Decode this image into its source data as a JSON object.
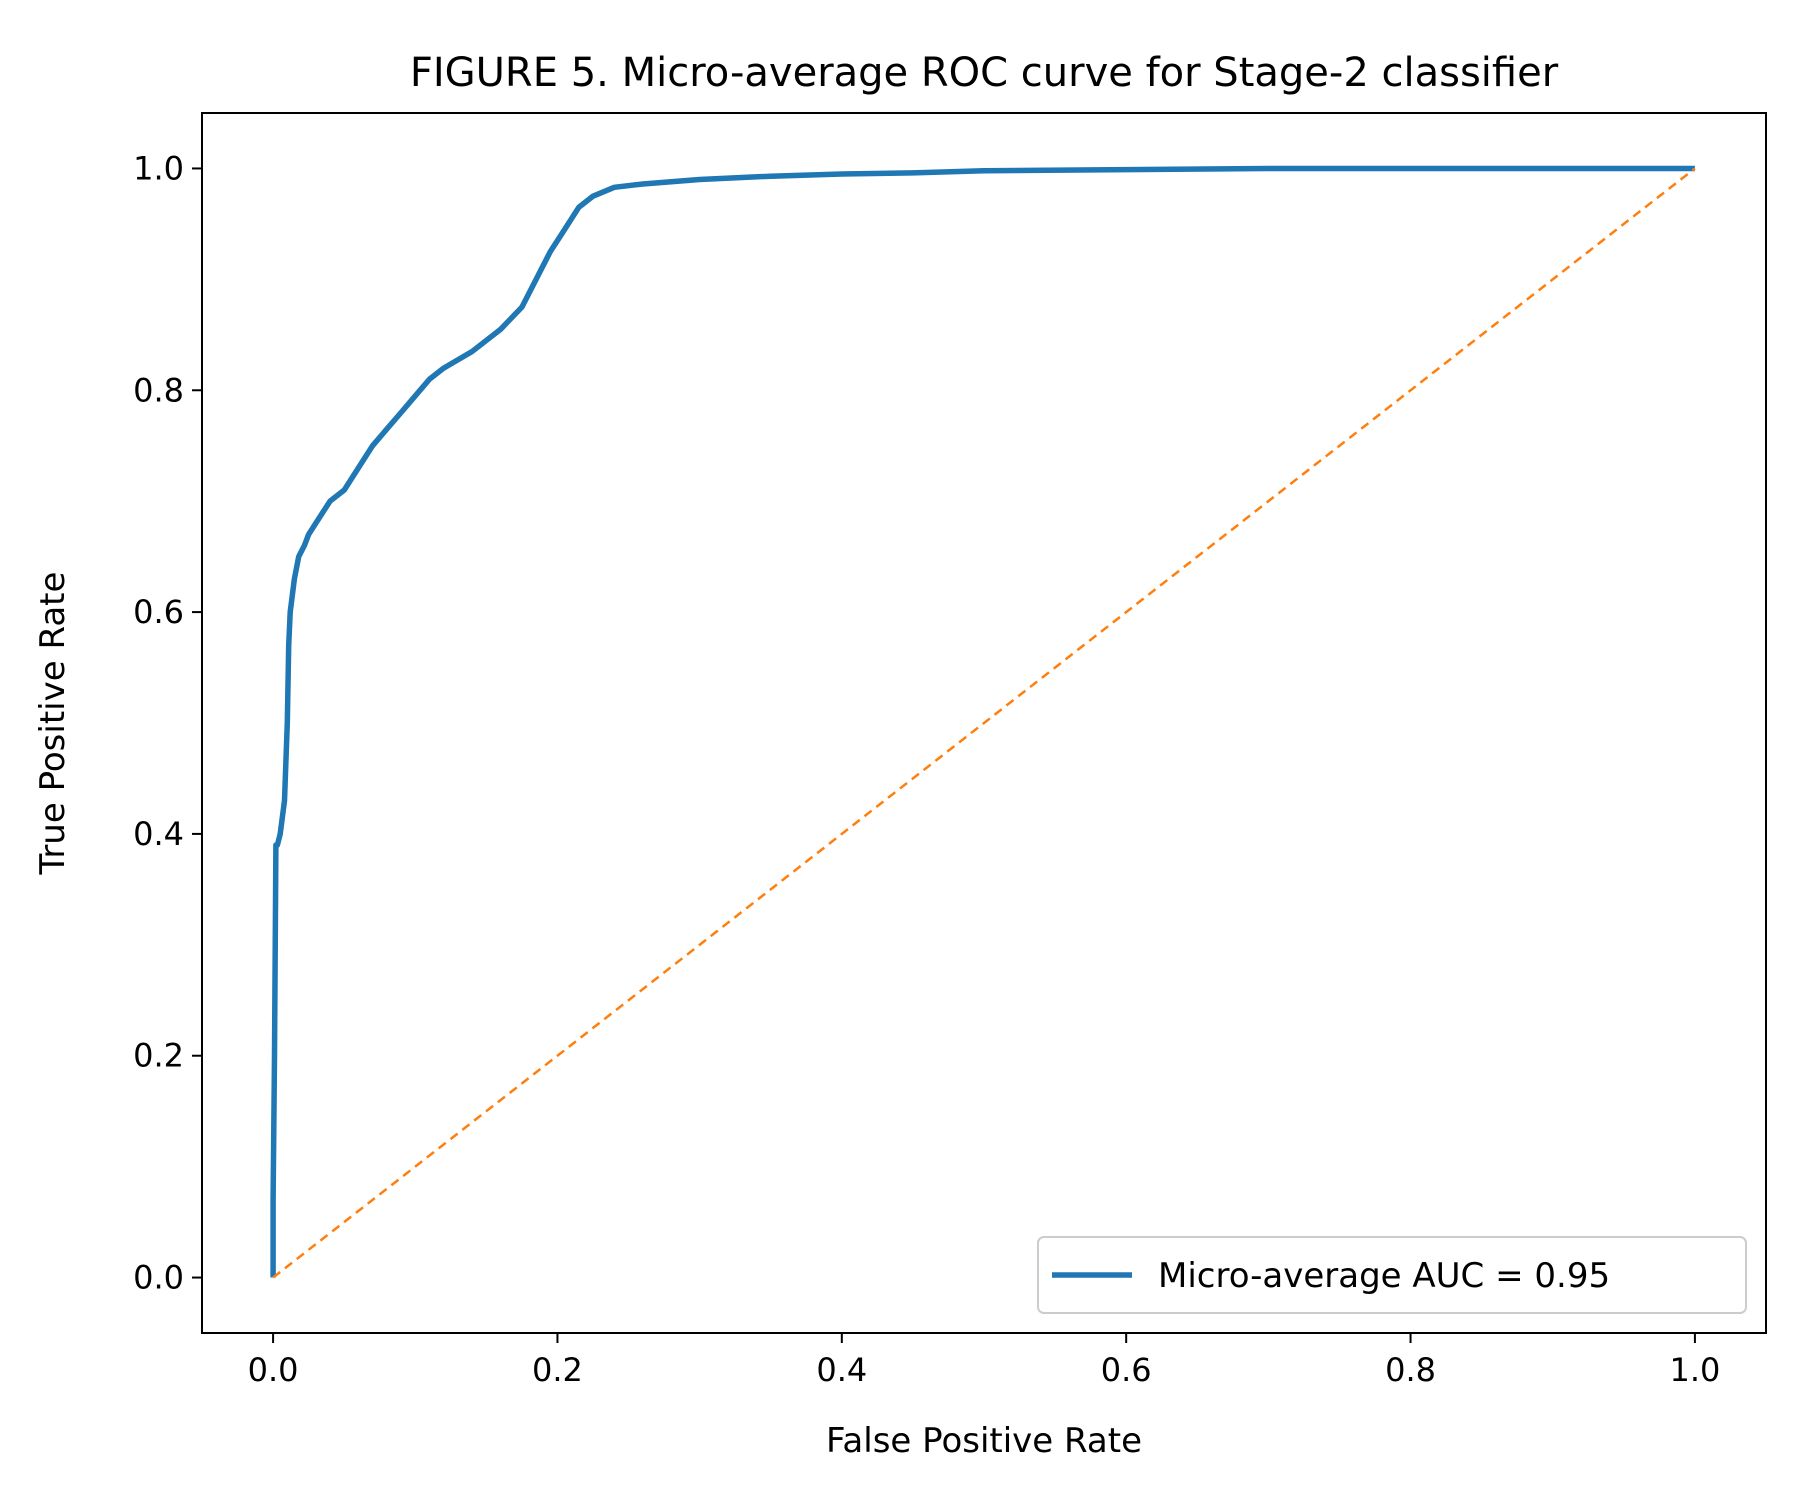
{
  "chart_data": {
    "type": "line",
    "title": "FIGURE 5. Micro-average ROC curve for Stage-2 classifier",
    "xlabel": "False Positive Rate",
    "ylabel": "True Positive Rate",
    "xlim": [
      -0.05,
      1.05
    ],
    "ylim": [
      -0.05,
      1.05
    ],
    "xticks": [
      "0.0",
      "0.2",
      "0.4",
      "0.6",
      "0.8",
      "1.0"
    ],
    "yticks": [
      "0.0",
      "0.2",
      "0.4",
      "0.6",
      "0.8",
      "1.0"
    ],
    "grid": false,
    "legend_position": "lower-right",
    "series": [
      {
        "name": "Micro-average AUC = 0.95",
        "color": "#1f77b4",
        "style": "solid",
        "x": [
          0.0,
          0.0,
          0.001,
          0.002,
          0.003,
          0.005,
          0.008,
          0.01,
          0.011,
          0.012,
          0.013,
          0.015,
          0.018,
          0.022,
          0.025,
          0.03,
          0.04,
          0.05,
          0.06,
          0.07,
          0.08,
          0.09,
          0.1,
          0.11,
          0.12,
          0.14,
          0.16,
          0.175,
          0.185,
          0.195,
          0.205,
          0.215,
          0.225,
          0.24,
          0.26,
          0.3,
          0.35,
          0.4,
          0.45,
          0.5,
          0.6,
          0.7,
          0.8,
          0.9,
          1.0
        ],
        "y": [
          0.0,
          0.07,
          0.2,
          0.39,
          0.39,
          0.4,
          0.43,
          0.5,
          0.57,
          0.6,
          0.61,
          0.63,
          0.65,
          0.66,
          0.67,
          0.68,
          0.7,
          0.71,
          0.73,
          0.75,
          0.765,
          0.78,
          0.795,
          0.81,
          0.82,
          0.835,
          0.855,
          0.875,
          0.9,
          0.925,
          0.945,
          0.965,
          0.975,
          0.983,
          0.986,
          0.99,
          0.993,
          0.995,
          0.996,
          0.998,
          0.999,
          1.0,
          1.0,
          1.0,
          1.0
        ]
      },
      {
        "name": "",
        "color": "#ff7f0e",
        "style": "dashed",
        "x": [
          0.0,
          1.0
        ],
        "y": [
          0.0,
          1.0
        ]
      }
    ]
  }
}
